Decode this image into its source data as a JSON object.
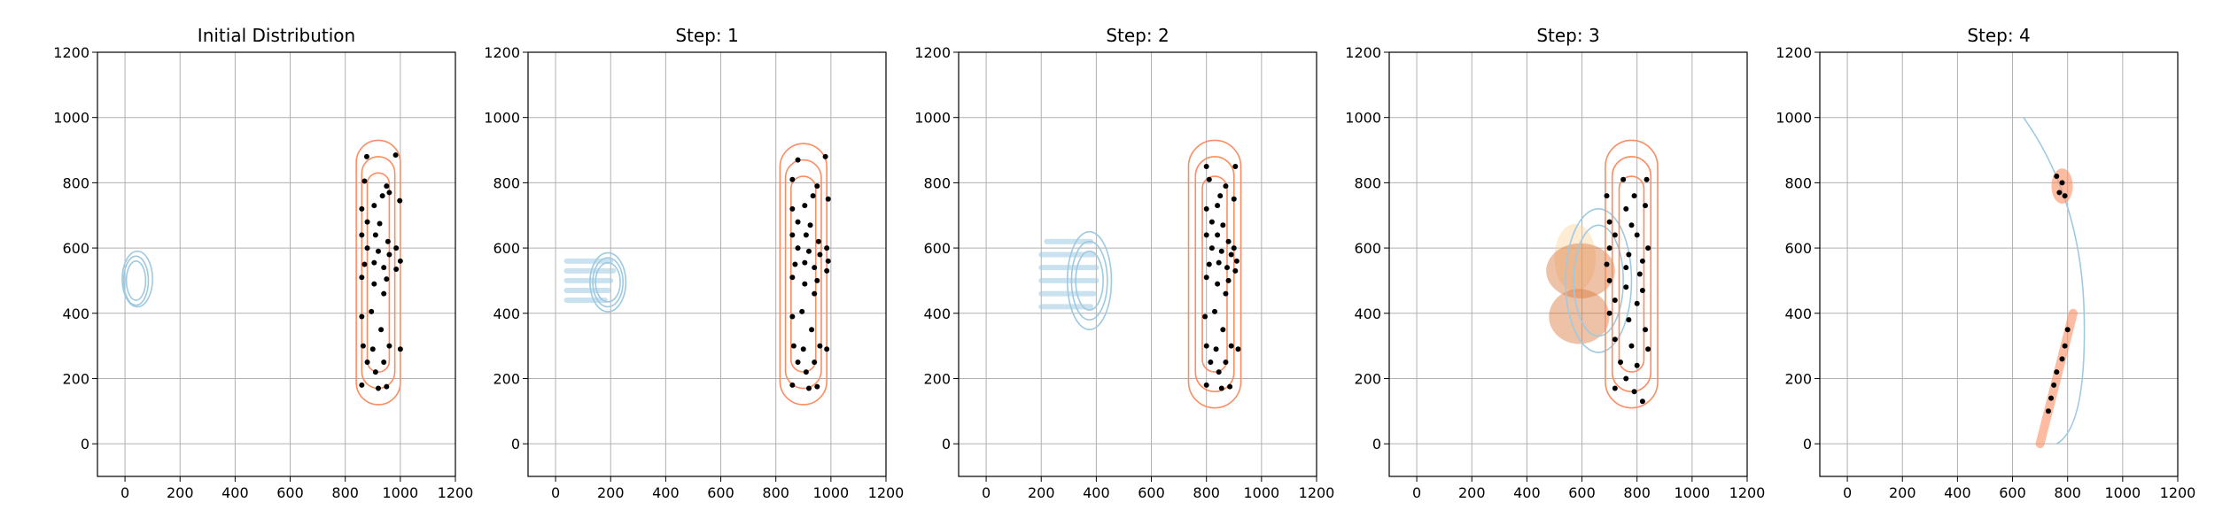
{
  "chart_data": [
    {
      "type": "scatter",
      "title": "Initial Distribution",
      "xlim": [
        -100,
        1200
      ],
      "ylim": [
        -100,
        1200
      ],
      "xticks": [
        0,
        200,
        400,
        600,
        800,
        1000,
        1200
      ],
      "yticks": [
        0,
        200,
        400,
        600,
        800,
        1000,
        1200
      ],
      "grid": true,
      "colors": {
        "source_contour": "#9ecae1",
        "target_contour": "#fc8d62",
        "particles": "#000000"
      },
      "source_contours": [
        {
          "cx": 40,
          "cy": 500,
          "rx": 35,
          "ry": 60
        },
        {
          "cx": 40,
          "cy": 500,
          "rx": 45,
          "ry": 75
        },
        {
          "cx": 45,
          "cy": 505,
          "rx": 55,
          "ry": 85
        }
      ],
      "target_contours": [
        {
          "x": 920,
          "y0": 300,
          "y1": 750,
          "wx": 40,
          "wy": 80
        },
        {
          "x": 920,
          "y0": 290,
          "y1": 760,
          "wx": 60,
          "wy": 120
        },
        {
          "x": 920,
          "y0": 280,
          "y1": 770,
          "wx": 80,
          "wy": 160
        }
      ],
      "particles": [
        [
          878,
          880
        ],
        [
          983,
          885
        ],
        [
          870,
          805
        ],
        [
          950,
          790
        ],
        [
          960,
          770
        ],
        [
          935,
          760
        ],
        [
          998,
          745
        ],
        [
          860,
          720
        ],
        [
          905,
          730
        ],
        [
          880,
          680
        ],
        [
          925,
          675
        ],
        [
          860,
          640
        ],
        [
          910,
          640
        ],
        [
          955,
          620
        ],
        [
          985,
          600
        ],
        [
          880,
          600
        ],
        [
          920,
          590
        ],
        [
          960,
          580
        ],
        [
          1000,
          560
        ],
        [
          870,
          550
        ],
        [
          905,
          555
        ],
        [
          940,
          540
        ],
        [
          985,
          535
        ],
        [
          860,
          510
        ],
        [
          905,
          490
        ],
        [
          950,
          505
        ],
        [
          940,
          460
        ],
        [
          895,
          405
        ],
        [
          860,
          390
        ],
        [
          930,
          350
        ],
        [
          865,
          300
        ],
        [
          900,
          290
        ],
        [
          960,
          300
        ],
        [
          1000,
          290
        ],
        [
          880,
          250
        ],
        [
          940,
          250
        ],
        [
          910,
          220
        ],
        [
          860,
          180
        ],
        [
          920,
          170
        ],
        [
          950,
          175
        ]
      ]
    },
    {
      "type": "scatter",
      "title": "Step: 1",
      "xlim": [
        -100,
        1200
      ],
      "ylim": [
        -100,
        1200
      ],
      "xticks": [
        0,
        200,
        400,
        600,
        800,
        1000,
        1200
      ],
      "yticks": [
        0,
        200,
        400,
        600,
        800,
        1000,
        1200
      ],
      "grid": true,
      "colors": {
        "source_contour": "#9ecae1",
        "target_contour": "#fc8d62",
        "particles": "#000000"
      },
      "source_contours": [
        {
          "cx": 190,
          "cy": 495,
          "rx": 45,
          "ry": 60
        },
        {
          "cx": 190,
          "cy": 495,
          "rx": 55,
          "ry": 75
        },
        {
          "cx": 190,
          "cy": 495,
          "rx": 65,
          "ry": 90
        }
      ],
      "source_streaks": [
        [
          40,
          180,
          440
        ],
        [
          40,
          190,
          470
        ],
        [
          40,
          200,
          500
        ],
        [
          40,
          210,
          530
        ],
        [
          40,
          200,
          560
        ]
      ],
      "target_contours": [
        {
          "x": 900,
          "y0": 300,
          "y1": 740,
          "wx": 45,
          "wy": 80
        },
        {
          "x": 900,
          "y0": 290,
          "y1": 750,
          "wx": 65,
          "wy": 120
        },
        {
          "x": 900,
          "y0": 280,
          "y1": 760,
          "wx": 85,
          "wy": 160
        }
      ],
      "particles": [
        [
          880,
          870
        ],
        [
          980,
          880
        ],
        [
          860,
          810
        ],
        [
          950,
          790
        ],
        [
          935,
          760
        ],
        [
          990,
          750
        ],
        [
          860,
          720
        ],
        [
          905,
          730
        ],
        [
          880,
          680
        ],
        [
          925,
          670
        ],
        [
          860,
          640
        ],
        [
          910,
          640
        ],
        [
          955,
          620
        ],
        [
          985,
          600
        ],
        [
          880,
          600
        ],
        [
          920,
          590
        ],
        [
          960,
          580
        ],
        [
          990,
          560
        ],
        [
          870,
          550
        ],
        [
          905,
          555
        ],
        [
          940,
          540
        ],
        [
          985,
          530
        ],
        [
          860,
          510
        ],
        [
          905,
          490
        ],
        [
          950,
          500
        ],
        [
          940,
          460
        ],
        [
          895,
          405
        ],
        [
          860,
          390
        ],
        [
          930,
          350
        ],
        [
          865,
          300
        ],
        [
          900,
          290
        ],
        [
          960,
          300
        ],
        [
          985,
          290
        ],
        [
          880,
          250
        ],
        [
          940,
          250
        ],
        [
          910,
          220
        ],
        [
          860,
          180
        ],
        [
          920,
          170
        ],
        [
          950,
          175
        ]
      ]
    },
    {
      "type": "scatter",
      "title": "Step: 2",
      "xlim": [
        -100,
        1200
      ],
      "ylim": [
        -100,
        1200
      ],
      "xticks": [
        0,
        200,
        400,
        600,
        800,
        1000,
        1200
      ],
      "yticks": [
        0,
        200,
        400,
        600,
        800,
        1000,
        1200
      ],
      "grid": true,
      "colors": {
        "source_contour": "#9ecae1",
        "target_contour": "#fc8d62",
        "particles": "#000000"
      },
      "source_contours": [
        {
          "cx": 375,
          "cy": 500,
          "rx": 50,
          "ry": 90
        },
        {
          "cx": 375,
          "cy": 500,
          "rx": 65,
          "ry": 120
        },
        {
          "cx": 375,
          "cy": 500,
          "rx": 80,
          "ry": 150
        }
      ],
      "source_streaks": [
        [
          200,
          380,
          420
        ],
        [
          200,
          390,
          460
        ],
        [
          200,
          400,
          500
        ],
        [
          200,
          400,
          540
        ],
        [
          200,
          390,
          580
        ],
        [
          220,
          380,
          620
        ]
      ],
      "target_contours": [
        {
          "x": 830,
          "y0": 300,
          "y1": 740,
          "wx": 45,
          "wy": 80
        },
        {
          "x": 830,
          "y0": 290,
          "y1": 750,
          "wx": 70,
          "wy": 130
        },
        {
          "x": 830,
          "y0": 280,
          "y1": 760,
          "wx": 95,
          "wy": 170
        }
      ],
      "particles": [
        [
          800,
          850
        ],
        [
          905,
          850
        ],
        [
          810,
          810
        ],
        [
          870,
          790
        ],
        [
          850,
          760
        ],
        [
          900,
          750
        ],
        [
          800,
          720
        ],
        [
          840,
          730
        ],
        [
          820,
          680
        ],
        [
          860,
          670
        ],
        [
          800,
          640
        ],
        [
          840,
          640
        ],
        [
          880,
          620
        ],
        [
          900,
          600
        ],
        [
          820,
          600
        ],
        [
          855,
          590
        ],
        [
          890,
          580
        ],
        [
          910,
          560
        ],
        [
          810,
          550
        ],
        [
          845,
          555
        ],
        [
          875,
          540
        ],
        [
          905,
          530
        ],
        [
          800,
          510
        ],
        [
          840,
          490
        ],
        [
          880,
          500
        ],
        [
          870,
          460
        ],
        [
          830,
          405
        ],
        [
          795,
          390
        ],
        [
          860,
          350
        ],
        [
          800,
          300
        ],
        [
          835,
          290
        ],
        [
          890,
          300
        ],
        [
          915,
          290
        ],
        [
          815,
          250
        ],
        [
          870,
          250
        ],
        [
          845,
          220
        ],
        [
          800,
          180
        ],
        [
          855,
          170
        ],
        [
          885,
          175
        ]
      ]
    },
    {
      "type": "scatter",
      "title": "Step: 3",
      "xlim": [
        -100,
        1200
      ],
      "ylim": [
        -100,
        1200
      ],
      "xticks": [
        0,
        200,
        400,
        600,
        800,
        1000,
        1200
      ],
      "yticks": [
        0,
        200,
        400,
        600,
        800,
        1000,
        1200
      ],
      "grid": true,
      "colors": {
        "source_contour": "#9ecae1",
        "target_contour": "#fc8d62",
        "particles": "#000000",
        "flow_light": "#fdd49e",
        "flow_dark": "#d9773b"
      },
      "source_contours": [
        {
          "cx": 660,
          "cy": 500,
          "rx": 120,
          "ry": 220
        },
        {
          "cx": 660,
          "cy": 500,
          "rx": 90,
          "ry": 170
        }
      ],
      "target_contours": [
        {
          "x": 780,
          "y0": 300,
          "y1": 740,
          "wx": 45,
          "wy": 80
        },
        {
          "x": 780,
          "y0": 290,
          "y1": 750,
          "wx": 70,
          "wy": 130
        },
        {
          "x": 780,
          "y0": 280,
          "y1": 760,
          "wx": 95,
          "wy": 170
        }
      ],
      "particles": [
        [
          750,
          810
        ],
        [
          835,
          810
        ],
        [
          690,
          760
        ],
        [
          790,
          760
        ],
        [
          760,
          720
        ],
        [
          830,
          730
        ],
        [
          700,
          680
        ],
        [
          780,
          670
        ],
        [
          720,
          640
        ],
        [
          800,
          640
        ],
        [
          840,
          600
        ],
        [
          700,
          600
        ],
        [
          770,
          580
        ],
        [
          820,
          560
        ],
        [
          690,
          550
        ],
        [
          760,
          540
        ],
        [
          810,
          520
        ],
        [
          700,
          500
        ],
        [
          760,
          480
        ],
        [
          820,
          470
        ],
        [
          720,
          440
        ],
        [
          800,
          430
        ],
        [
          700,
          400
        ],
        [
          770,
          380
        ],
        [
          830,
          350
        ],
        [
          720,
          320
        ],
        [
          780,
          300
        ],
        [
          840,
          290
        ],
        [
          740,
          250
        ],
        [
          800,
          240
        ],
        [
          760,
          200
        ],
        [
          720,
          170
        ],
        [
          790,
          160
        ],
        [
          820,
          130
        ]
      ]
    },
    {
      "type": "scatter",
      "title": "Step: 4",
      "xlim": [
        -100,
        1200
      ],
      "ylim": [
        -100,
        1200
      ],
      "xticks": [
        0,
        200,
        400,
        600,
        800,
        1000,
        1200
      ],
      "yticks": [
        0,
        200,
        400,
        600,
        800,
        1000,
        1200
      ],
      "grid": true,
      "colors": {
        "source_contour": "#9ecae1",
        "target_contour": "#fc8d62",
        "particles": "#000000"
      },
      "particles": [
        [
          760,
          820
        ],
        [
          780,
          800
        ],
        [
          770,
          770
        ],
        [
          790,
          760
        ],
        [
          800,
          350
        ],
        [
          790,
          300
        ],
        [
          780,
          260
        ],
        [
          760,
          220
        ],
        [
          750,
          180
        ],
        [
          740,
          140
        ],
        [
          730,
          100
        ]
      ]
    }
  ]
}
